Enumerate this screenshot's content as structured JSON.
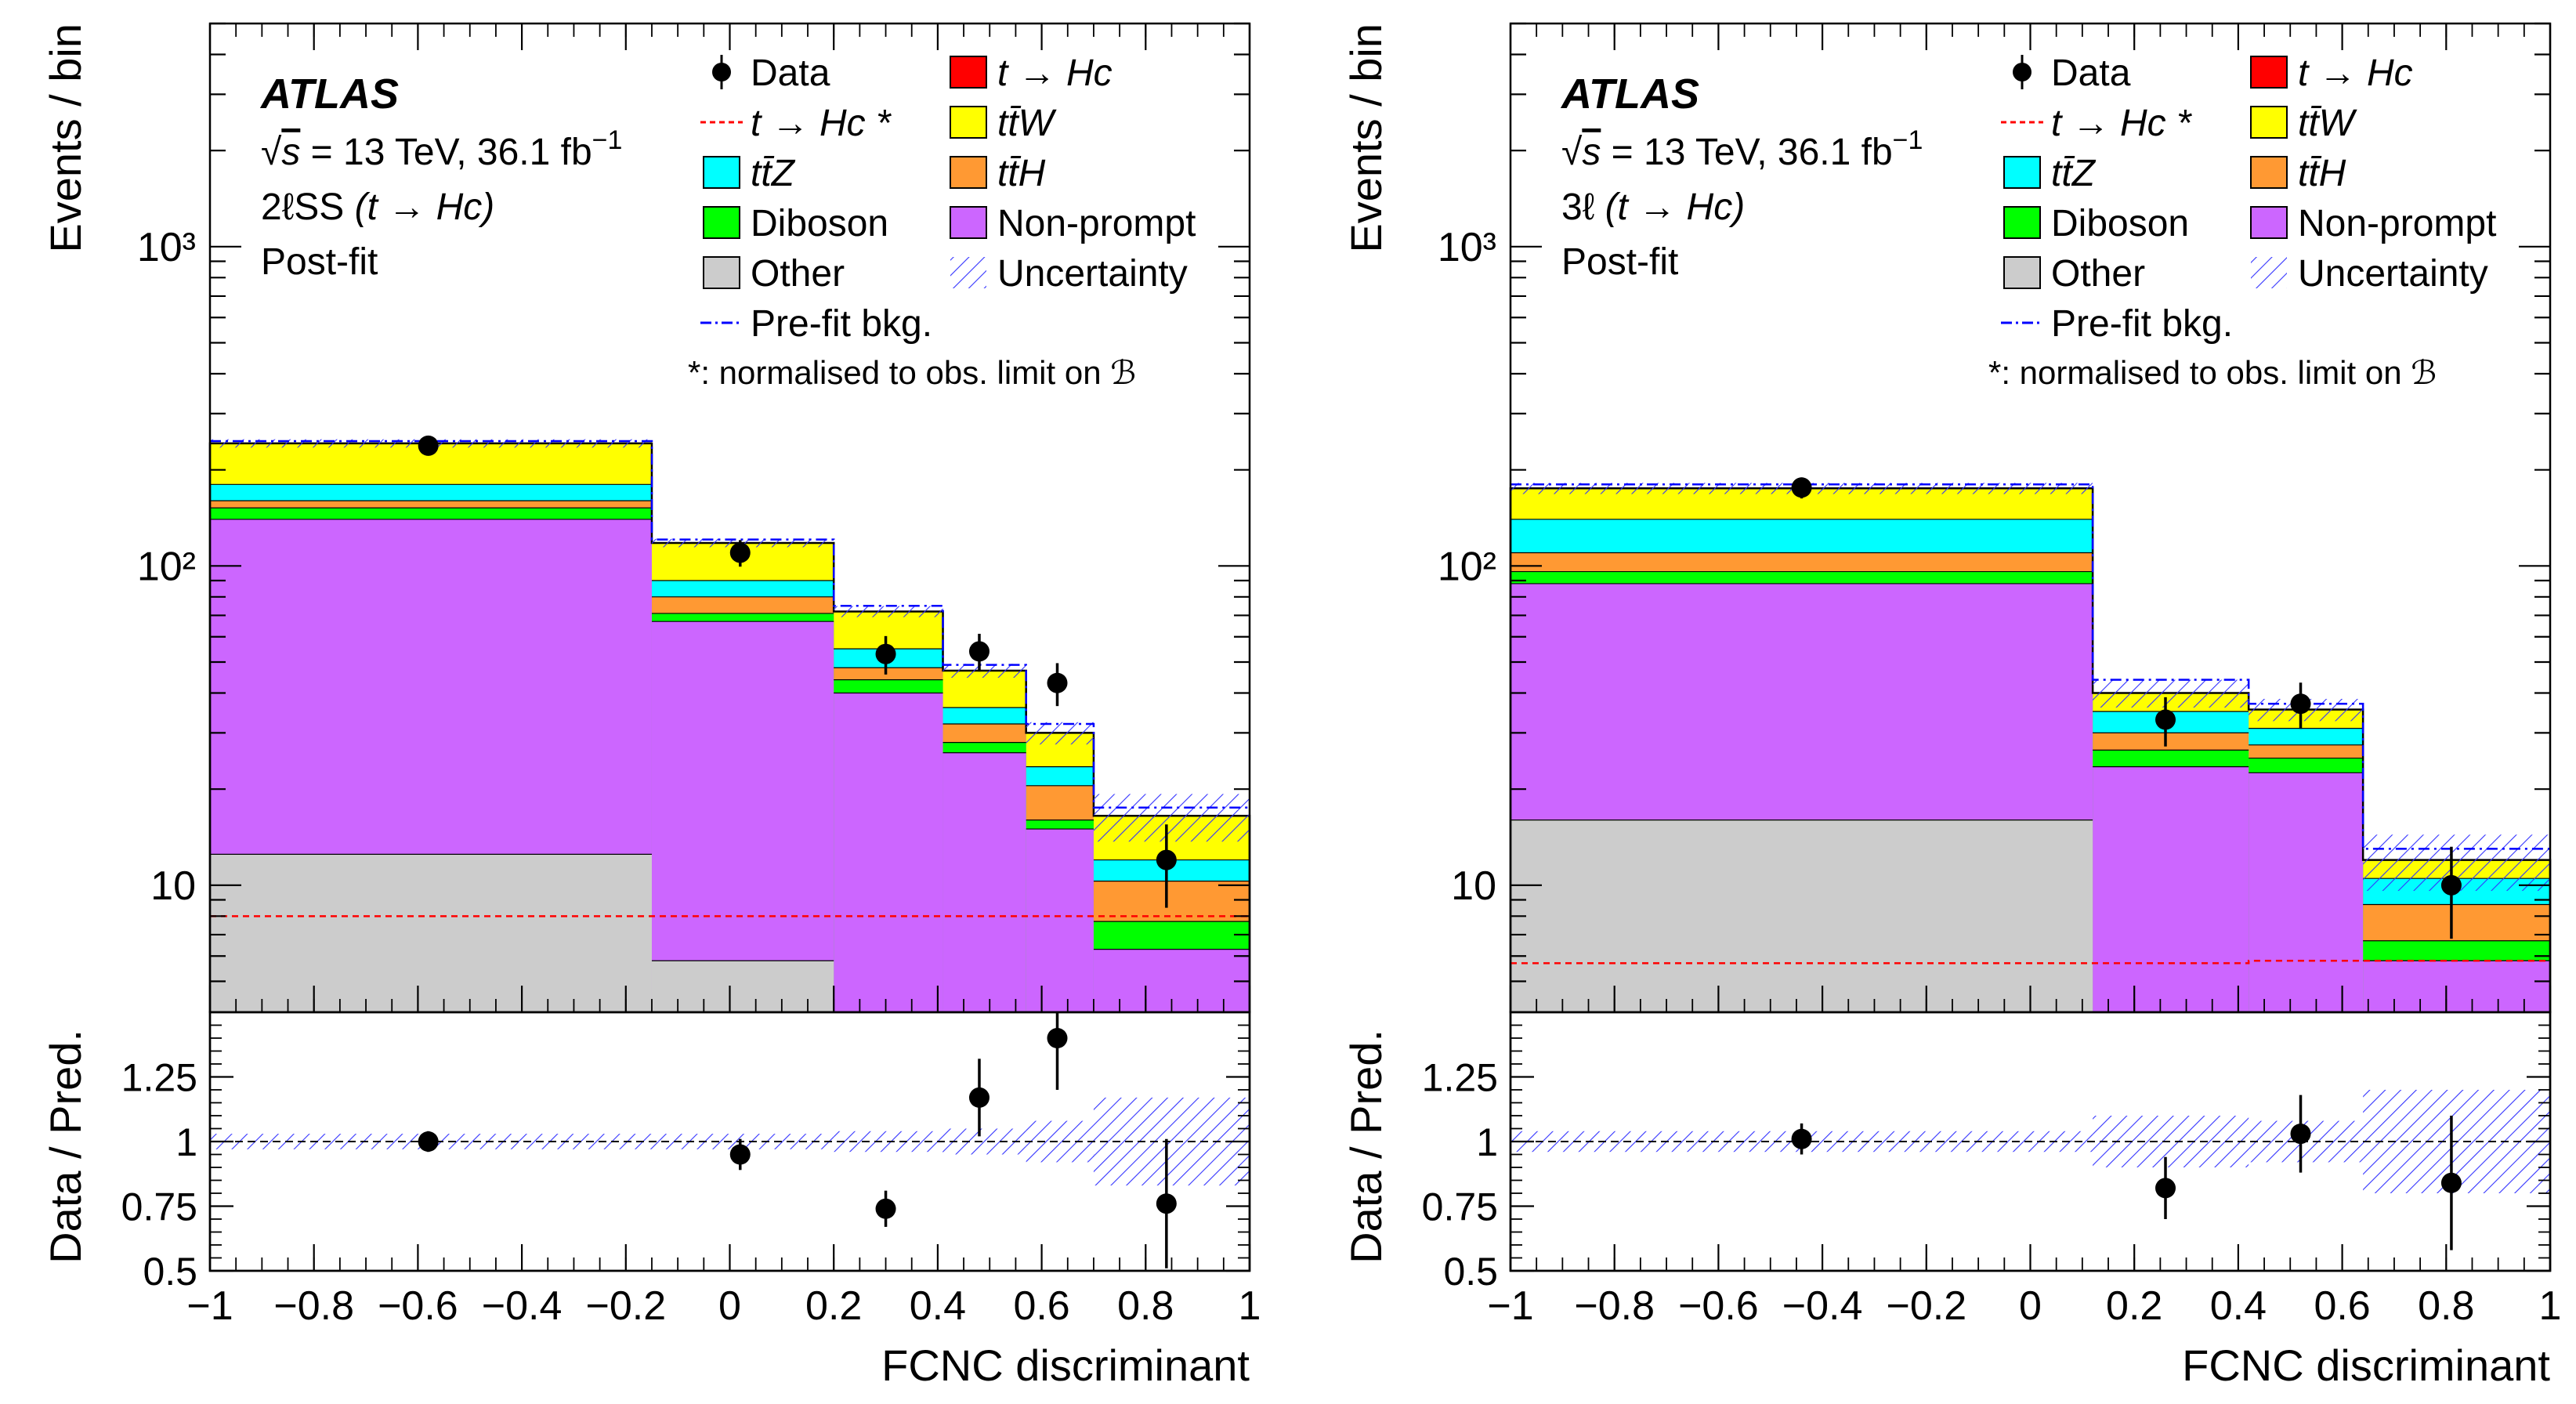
{
  "chart_data": [
    {
      "type": "stacked-histogram",
      "panel": "left",
      "experiment": "ATLAS",
      "energy_label": "√s = 13 TeV, 36.1 fb⁻¹",
      "energy_parts": {
        "root": "s",
        "text": " = 13 TeV, 36.1 fb",
        "sup": "−1"
      },
      "region": "2ℓSS (t → Hc)",
      "region_parts": {
        "prefix": "2ℓSS",
        "process": "(t → Hc)"
      },
      "fit_state": "Post-fit",
      "ylabel": "Events / bin",
      "ratio_ylabel": "Data / Pred.",
      "xlabel": "FCNC discriminant",
      "yscale": "log",
      "ylim": [
        4,
        5000
      ],
      "ratio_ylim": [
        0.5,
        1.5
      ],
      "xlim": [
        -1,
        1
      ],
      "bin_edges": [
        -1,
        -0.15,
        0.2,
        0.41,
        0.57,
        0.7,
        1.0
      ],
      "stack_order": [
        "Other",
        "Non-prompt",
        "Diboson",
        "ttH",
        "ttZ",
        "ttW",
        "t → Hc"
      ],
      "stack": {
        "Other": [
          12.5,
          5.8,
          4.0,
          4.0,
          4.0,
          4.0
        ],
        "Non-prompt": [
          140,
          67,
          40,
          26,
          15,
          6.3
        ],
        "Diboson": [
          152,
          71,
          44,
          28,
          16,
          7.7
        ],
        "ttH": [
          160,
          80,
          48,
          32,
          20.5,
          10.3
        ],
        "ttZ": [
          180,
          90,
          55,
          36,
          23.5,
          12
        ],
        "ttW": [
          242,
          118,
          72,
          47,
          30,
          16.5
        ],
        "t → Hc": [
          242,
          118,
          72,
          47,
          30,
          16.5
        ]
      },
      "signal_line": [
        8.0,
        8.0,
        8.0,
        8.0,
        8.0,
        8.0
      ],
      "prefit_bkg": [
        246,
        121,
        75,
        49,
        32,
        17.5
      ],
      "uncertainty": [
        0.03,
        0.03,
        0.04,
        0.05,
        0.08,
        0.17
      ],
      "data": {
        "x": [
          -0.58,
          0.02,
          0.3,
          0.48,
          0.63,
          0.84
        ],
        "y": [
          238,
          110,
          53,
          54,
          43,
          12
        ],
        "err": [
          15.4,
          10.5,
          7.3,
          7.3,
          6.6,
          3.5
        ]
      },
      "ratio": {
        "x": [
          -0.58,
          0.02,
          0.3,
          0.48,
          0.63,
          0.84
        ],
        "y": [
          1.0,
          0.95,
          0.74,
          1.17,
          1.4,
          0.76
        ],
        "err": [
          0.04,
          0.06,
          0.07,
          0.15,
          0.2,
          0.25
        ]
      },
      "xticks": [
        "−1",
        "−0.8",
        "−0.6",
        "−0.4",
        "−0.2",
        "0",
        "0.2",
        "0.4",
        "0.6",
        "0.8",
        "1"
      ],
      "yticks": [
        "10",
        "10²",
        "10³"
      ],
      "ratio_ticks": [
        "0.5",
        "0.75",
        "1",
        "1.25"
      ],
      "legend": [
        {
          "label": "Data",
          "kind": "marker"
        },
        {
          "label": "t → Hc",
          "kind": "fill",
          "color": "#ff0000"
        },
        {
          "label": "t → Hc *",
          "kind": "dashline",
          "color": "#ff0000"
        },
        {
          "label": "tt̄W",
          "kind": "fill",
          "color": "#ffff00"
        },
        {
          "label": "tt̄Z",
          "kind": "fill",
          "color": "#00ffff"
        },
        {
          "label": "tt̄H",
          "kind": "fill",
          "color": "#ff9933"
        },
        {
          "label": "Diboson",
          "kind": "fill",
          "color": "#00ff00"
        },
        {
          "label": "Non-prompt",
          "kind": "fill",
          "color": "#cc66ff"
        },
        {
          "label": "Other",
          "kind": "fill",
          "color": "#cccccc"
        },
        {
          "label": "Uncertainty",
          "kind": "hatch",
          "color": "#3333ff"
        },
        {
          "label": "Pre-fit bkg.",
          "kind": "dashdot",
          "color": "#0000ff"
        }
      ],
      "legend_note": "*: normalised to obs. limit on ℬ"
    },
    {
      "type": "stacked-histogram",
      "panel": "right",
      "experiment": "ATLAS",
      "energy_label": "√s = 13 TeV, 36.1 fb⁻¹",
      "energy_parts": {
        "root": "s",
        "text": " = 13 TeV, 36.1 fb",
        "sup": "−1"
      },
      "region": "3ℓ (t → Hc)",
      "region_parts": {
        "prefix": "3ℓ",
        "process": "(t → Hc)"
      },
      "fit_state": "Post-fit",
      "ylabel": "Events / bin",
      "ratio_ylabel": "Data / Pred.",
      "xlabel": "FCNC discriminant",
      "yscale": "log",
      "ylim": [
        4,
        5000
      ],
      "ratio_ylim": [
        0.5,
        1.5
      ],
      "xlim": [
        -1,
        1
      ],
      "bin_edges": [
        -1,
        0.12,
        0.42,
        0.64,
        1.0
      ],
      "stack_order": [
        "Other",
        "Non-prompt",
        "Diboson",
        "ttH",
        "ttZ",
        "ttW",
        "t → Hc"
      ],
      "stack": {
        "Other": [
          16,
          4.0,
          4.0,
          4.0
        ],
        "Non-prompt": [
          88,
          23.5,
          22.5,
          5.8
        ],
        "Diboson": [
          96,
          26.5,
          25,
          6.7
        ],
        "ttH": [
          110,
          30,
          27.5,
          8.7
        ],
        "ttZ": [
          140,
          35,
          31,
          10.5
        ],
        "ttW": [
          175,
          40,
          35.5,
          12
        ],
        "t → Hc": [
          175,
          40,
          35.5,
          12
        ]
      },
      "signal_line": [
        5.7,
        5.7,
        5.8,
        5.8
      ],
      "prefit_bkg": [
        180,
        44,
        37,
        13
      ],
      "uncertainty": [
        0.04,
        0.1,
        0.08,
        0.2
      ],
      "data": {
        "x": [
          -0.44,
          0.26,
          0.52,
          0.81
        ],
        "y": [
          176,
          33,
          37,
          10
        ],
        "err": [
          13.3,
          5.8,
          6.1,
          3.2
        ]
      },
      "ratio": {
        "x": [
          -0.44,
          0.26,
          0.52,
          0.81
        ],
        "y": [
          1.01,
          0.82,
          1.03,
          0.84
        ],
        "err": [
          0.06,
          0.12,
          0.15,
          0.26
        ]
      },
      "xticks": [
        "−1",
        "−0.8",
        "−0.6",
        "−0.4",
        "−0.2",
        "0",
        "0.2",
        "0.4",
        "0.6",
        "0.8",
        "1"
      ],
      "yticks": [
        "10",
        "10²",
        "10³"
      ],
      "ratio_ticks": [
        "0.5",
        "0.75",
        "1",
        "1.25"
      ],
      "legend": [
        {
          "label": "Data",
          "kind": "marker"
        },
        {
          "label": "t → Hc",
          "kind": "fill",
          "color": "#ff0000"
        },
        {
          "label": "t → Hc *",
          "kind": "dashline",
          "color": "#ff0000"
        },
        {
          "label": "tt̄W",
          "kind": "fill",
          "color": "#ffff00"
        },
        {
          "label": "tt̄Z",
          "kind": "fill",
          "color": "#00ffff"
        },
        {
          "label": "tt̄H",
          "kind": "fill",
          "color": "#ff9933"
        },
        {
          "label": "Diboson",
          "kind": "fill",
          "color": "#00ff00"
        },
        {
          "label": "Non-prompt",
          "kind": "fill",
          "color": "#cc66ff"
        },
        {
          "label": "Other",
          "kind": "fill",
          "color": "#cccccc"
        },
        {
          "label": "Uncertainty",
          "kind": "hatch",
          "color": "#3333ff"
        },
        {
          "label": "Pre-fit bkg.",
          "kind": "dashdot",
          "color": "#0000ff"
        }
      ],
      "legend_note": "*: normalised to obs. limit on ℬ"
    }
  ],
  "colors": {
    "signal": "#ff0000",
    "ttW": "#ffff00",
    "ttZ": "#00ffff",
    "ttH": "#ff9933",
    "Diboson": "#00ff00",
    "Non-prompt": "#cc66ff",
    "Other": "#cccccc",
    "uncertainty": "#3333ff",
    "prefit": "#0000ff"
  }
}
